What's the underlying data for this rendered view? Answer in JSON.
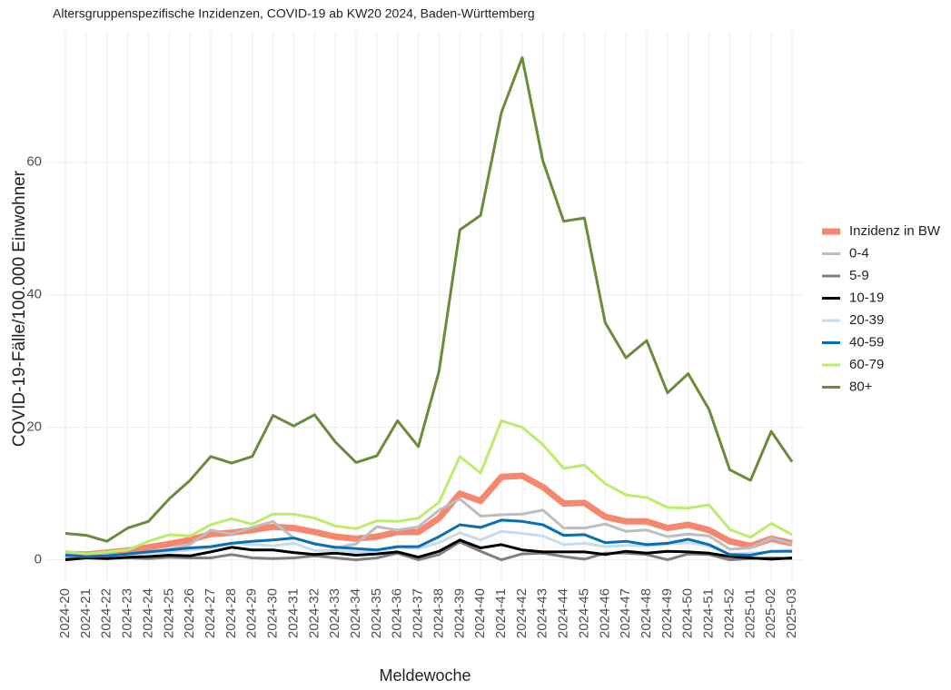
{
  "chart_data": {
    "type": "line",
    "title": "Altersgruppenspezifische Inzidenzen, COVID-19 ab KW20 2024, Baden-Württemberg",
    "x_label": "Meldewoche",
    "y_label": "COVID-19-Fälle/100.000 Einwohner",
    "categories": [
      "2024-20",
      "2024-21",
      "2024-22",
      "2024-23",
      "2024-24",
      "2024-25",
      "2024-26",
      "2024-27",
      "2024-28",
      "2024-29",
      "2024-30",
      "2024-31",
      "2024-32",
      "2024-33",
      "2024-34",
      "2024-35",
      "2024-36",
      "2024-37",
      "2024-38",
      "2024-39",
      "2024-40",
      "2024-41",
      "2024-42",
      "2024-43",
      "2024-44",
      "2024-45",
      "2024-46",
      "2024-47",
      "2024-48",
      "2024-49",
      "2024-50",
      "2024-51",
      "2024-52",
      "2025-01",
      "2025-02",
      "2025-03"
    ],
    "series": [
      {
        "name": "Inzidenz in BW",
        "color": "#f4876e",
        "line_width": 7,
        "values": [
          0.9,
          0.8,
          1.1,
          1.4,
          1.9,
          2.4,
          3,
          3.9,
          4.1,
          4.5,
          5,
          4.8,
          4.2,
          3.5,
          3.2,
          3.5,
          4.2,
          4.2,
          6.3,
          10,
          8.9,
          12.5,
          12.7,
          11,
          8.5,
          8.6,
          6.5,
          5.8,
          5.8,
          4.8,
          5.3,
          4.5,
          2.8,
          2.1,
          3.2,
          2.5
        ]
      },
      {
        "name": "0-4",
        "color": "#bdbdbd",
        "line_width": 3,
        "values": [
          1,
          0.6,
          0.7,
          0.9,
          1.2,
          1.6,
          2.3,
          4.5,
          3.9,
          4.9,
          5.8,
          3.3,
          2.5,
          1.8,
          2.4,
          5,
          4.5,
          5,
          7.5,
          9.2,
          6.6,
          6.8,
          6.9,
          7.5,
          4.8,
          4.8,
          5.4,
          4.3,
          4.5,
          3.5,
          3.9,
          3.6,
          1.6,
          1.8,
          3.3,
          2.4
        ]
      },
      {
        "name": "5-9",
        "color": "#7f7f7f",
        "line_width": 3,
        "values": [
          0.3,
          0.5,
          0.2,
          0.3,
          0.2,
          0.4,
          0.3,
          0.3,
          0.8,
          0.3,
          0.2,
          0.3,
          0.6,
          0.3,
          0,
          0.3,
          1,
          0,
          0.8,
          2.7,
          1.3,
          0,
          0.9,
          1,
          0.5,
          0.1,
          1,
          1,
          0.8,
          0,
          0.9,
          0.8,
          0,
          0.2,
          0.3,
          0.2
        ]
      },
      {
        "name": "10-19",
        "color": "#000000",
        "line_width": 3,
        "values": [
          0,
          0.3,
          0.2,
          0.4,
          0.5,
          0.7,
          0.6,
          1.2,
          1.9,
          1.5,
          1.5,
          1.1,
          0.8,
          1,
          0.7,
          0.9,
          1.2,
          0.4,
          1.3,
          3,
          1.8,
          2.3,
          1.5,
          1.2,
          1.2,
          1.2,
          0.8,
          1.3,
          1,
          1.3,
          1.2,
          1,
          0.5,
          0.3,
          0.1,
          0.3
        ]
      },
      {
        "name": "20-39",
        "color": "#c6dbef",
        "line_width": 3,
        "values": [
          0.6,
          0.5,
          0.6,
          0.8,
          1,
          1.2,
          1.5,
          1.8,
          2.5,
          2.3,
          2.1,
          2.5,
          1.4,
          1.4,
          1.2,
          1.3,
          1.9,
          1.7,
          2.6,
          4.1,
          3,
          4.3,
          4,
          3.6,
          2.3,
          2.5,
          2,
          2.2,
          2.1,
          2.4,
          2.6,
          2.1,
          0.8,
          1,
          1.2,
          1.5
        ]
      },
      {
        "name": "40-59",
        "color": "#0b6eb5",
        "line_width": 3,
        "values": [
          0.7,
          0.5,
          0.6,
          0.9,
          1.2,
          1.5,
          1.8,
          2,
          2.5,
          2.8,
          3,
          3.3,
          2.4,
          1.9,
          1.7,
          1.5,
          2,
          2,
          3.5,
          5.3,
          4.9,
          6,
          5.8,
          5.3,
          3.7,
          3.8,
          2.6,
          2.8,
          2.3,
          2.5,
          3.1,
          2.3,
          0.8,
          0.7,
          1.3,
          1.3
        ]
      },
      {
        "name": "60-79",
        "color": "#bbed6b",
        "line_width": 3,
        "values": [
          1.3,
          0.9,
          1.2,
          1.5,
          2.8,
          3.8,
          3.6,
          5.3,
          6.2,
          5.4,
          6.9,
          6.9,
          6.3,
          5.1,
          4.7,
          5.9,
          5.8,
          6.3,
          8.7,
          15.6,
          13.1,
          21,
          20,
          17.4,
          13.8,
          14.3,
          11.5,
          9.8,
          9.4,
          7.9,
          7.8,
          8.3,
          4.6,
          3.4,
          5.5,
          3.8
        ]
      },
      {
        "name": "80+",
        "color": "#6b8a3a",
        "line_width": 3,
        "values": [
          4,
          3.7,
          2.8,
          4.8,
          5.8,
          9.2,
          12,
          15.6,
          14.6,
          15.6,
          21.8,
          20.2,
          21.9,
          17.8,
          14.7,
          15.7,
          21,
          17.1,
          28.5,
          49.8,
          52,
          67.5,
          75.8,
          60.2,
          51.1,
          51.6,
          35.8,
          30.5,
          33.1,
          25.2,
          28.1,
          22.7,
          13.6,
          12,
          19.4,
          14.8
        ]
      }
    ],
    "ylim": [
      -3.2,
      79.7
    ],
    "yticks": [
      0,
      20,
      40,
      60
    ],
    "grid": true,
    "legend": "right"
  }
}
